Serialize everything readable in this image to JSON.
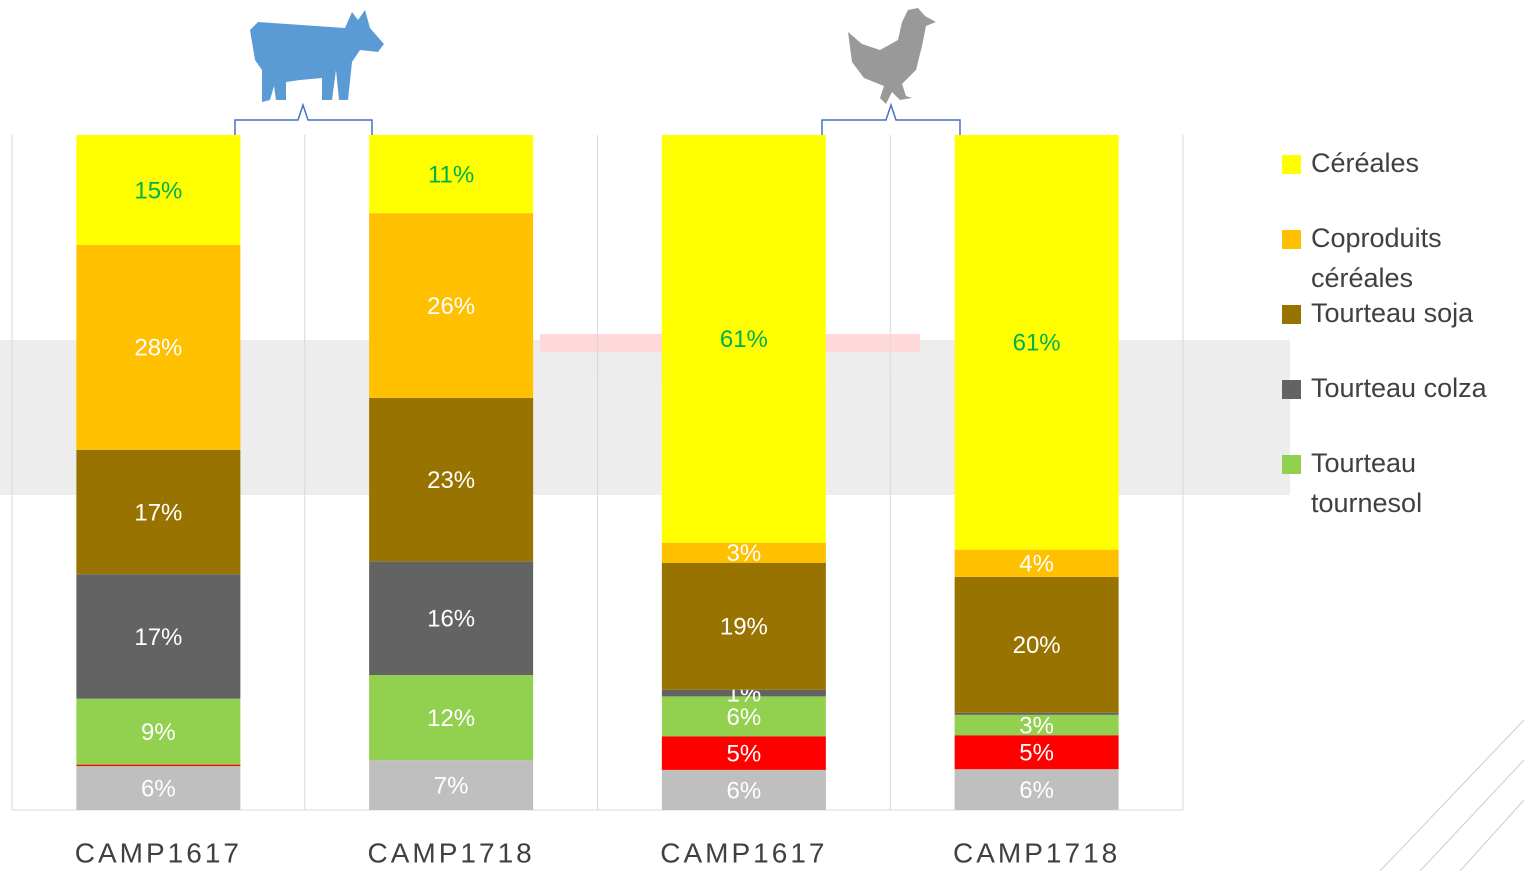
{
  "chart_data": {
    "type": "bar",
    "stack": "percent",
    "categories": [
      "CAMP1617",
      "CAMP1718",
      "CAMP1617",
      "CAMP1718"
    ],
    "series": [
      {
        "color": "#bfbfbf",
        "values": [
          6,
          7,
          6,
          6
        ],
        "value_labels": [
          "6%",
          "7%",
          "6%",
          "6%"
        ]
      },
      {
        "color": "#ff0000",
        "values": [
          0.2,
          0,
          5,
          5
        ],
        "value_labels": [
          null,
          null,
          "5%",
          "5%"
        ]
      },
      {
        "name": "Tourteau tournesol",
        "color": "#92d050",
        "values": [
          9,
          12,
          6,
          3
        ],
        "value_labels": [
          "9%",
          "12%",
          "6%",
          "3%"
        ]
      },
      {
        "name": "Tourteau colza",
        "color": "#636363",
        "values": [
          17,
          16,
          1,
          0.3
        ],
        "value_labels": [
          "17%",
          "16%",
          "1%",
          null
        ]
      },
      {
        "name": "Tourteau soja",
        "color": "#997300",
        "values": [
          17,
          23,
          19,
          20
        ],
        "value_labels": [
          "17%",
          "23%",
          "19%",
          "20%"
        ]
      },
      {
        "name": "Coproduits céréales",
        "color": "#ffc000",
        "values": [
          28,
          26,
          3,
          4
        ],
        "value_labels": [
          "28%",
          "26%",
          "3%",
          "4%"
        ]
      },
      {
        "name": "Céréales",
        "color": "#ffff00",
        "values": [
          15,
          11,
          61,
          61
        ],
        "value_labels": [
          "15%",
          "11%",
          "61%",
          "61%"
        ]
      }
    ]
  }
}
